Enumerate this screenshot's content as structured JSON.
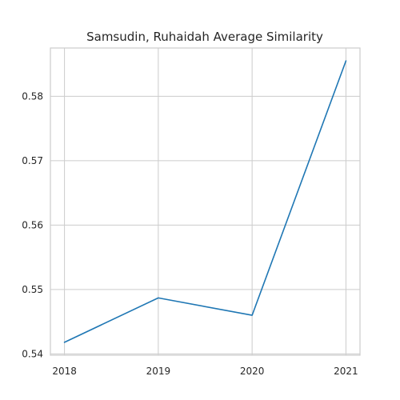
{
  "chart_data": {
    "type": "line",
    "title": "Samsudin, Ruhaidah Average Similarity",
    "xlabel": "",
    "ylabel": "",
    "x": [
      2018,
      2019,
      2020,
      2021
    ],
    "x_tick_labels": [
      "2018",
      "2019",
      "2020",
      "2021"
    ],
    "xlim": [
      2017.85,
      2021.15
    ],
    "ylim": [
      0.5398,
      0.5875
    ],
    "y_ticks": [
      0.54,
      0.55,
      0.56,
      0.57,
      0.58
    ],
    "y_tick_labels": [
      "0.54",
      "0.55",
      "0.56",
      "0.57",
      "0.58"
    ],
    "grid": true,
    "series": [
      {
        "color": "#1f77b4",
        "values": [
          0.5418,
          0.5487,
          0.546,
          0.5855
        ]
      }
    ]
  }
}
